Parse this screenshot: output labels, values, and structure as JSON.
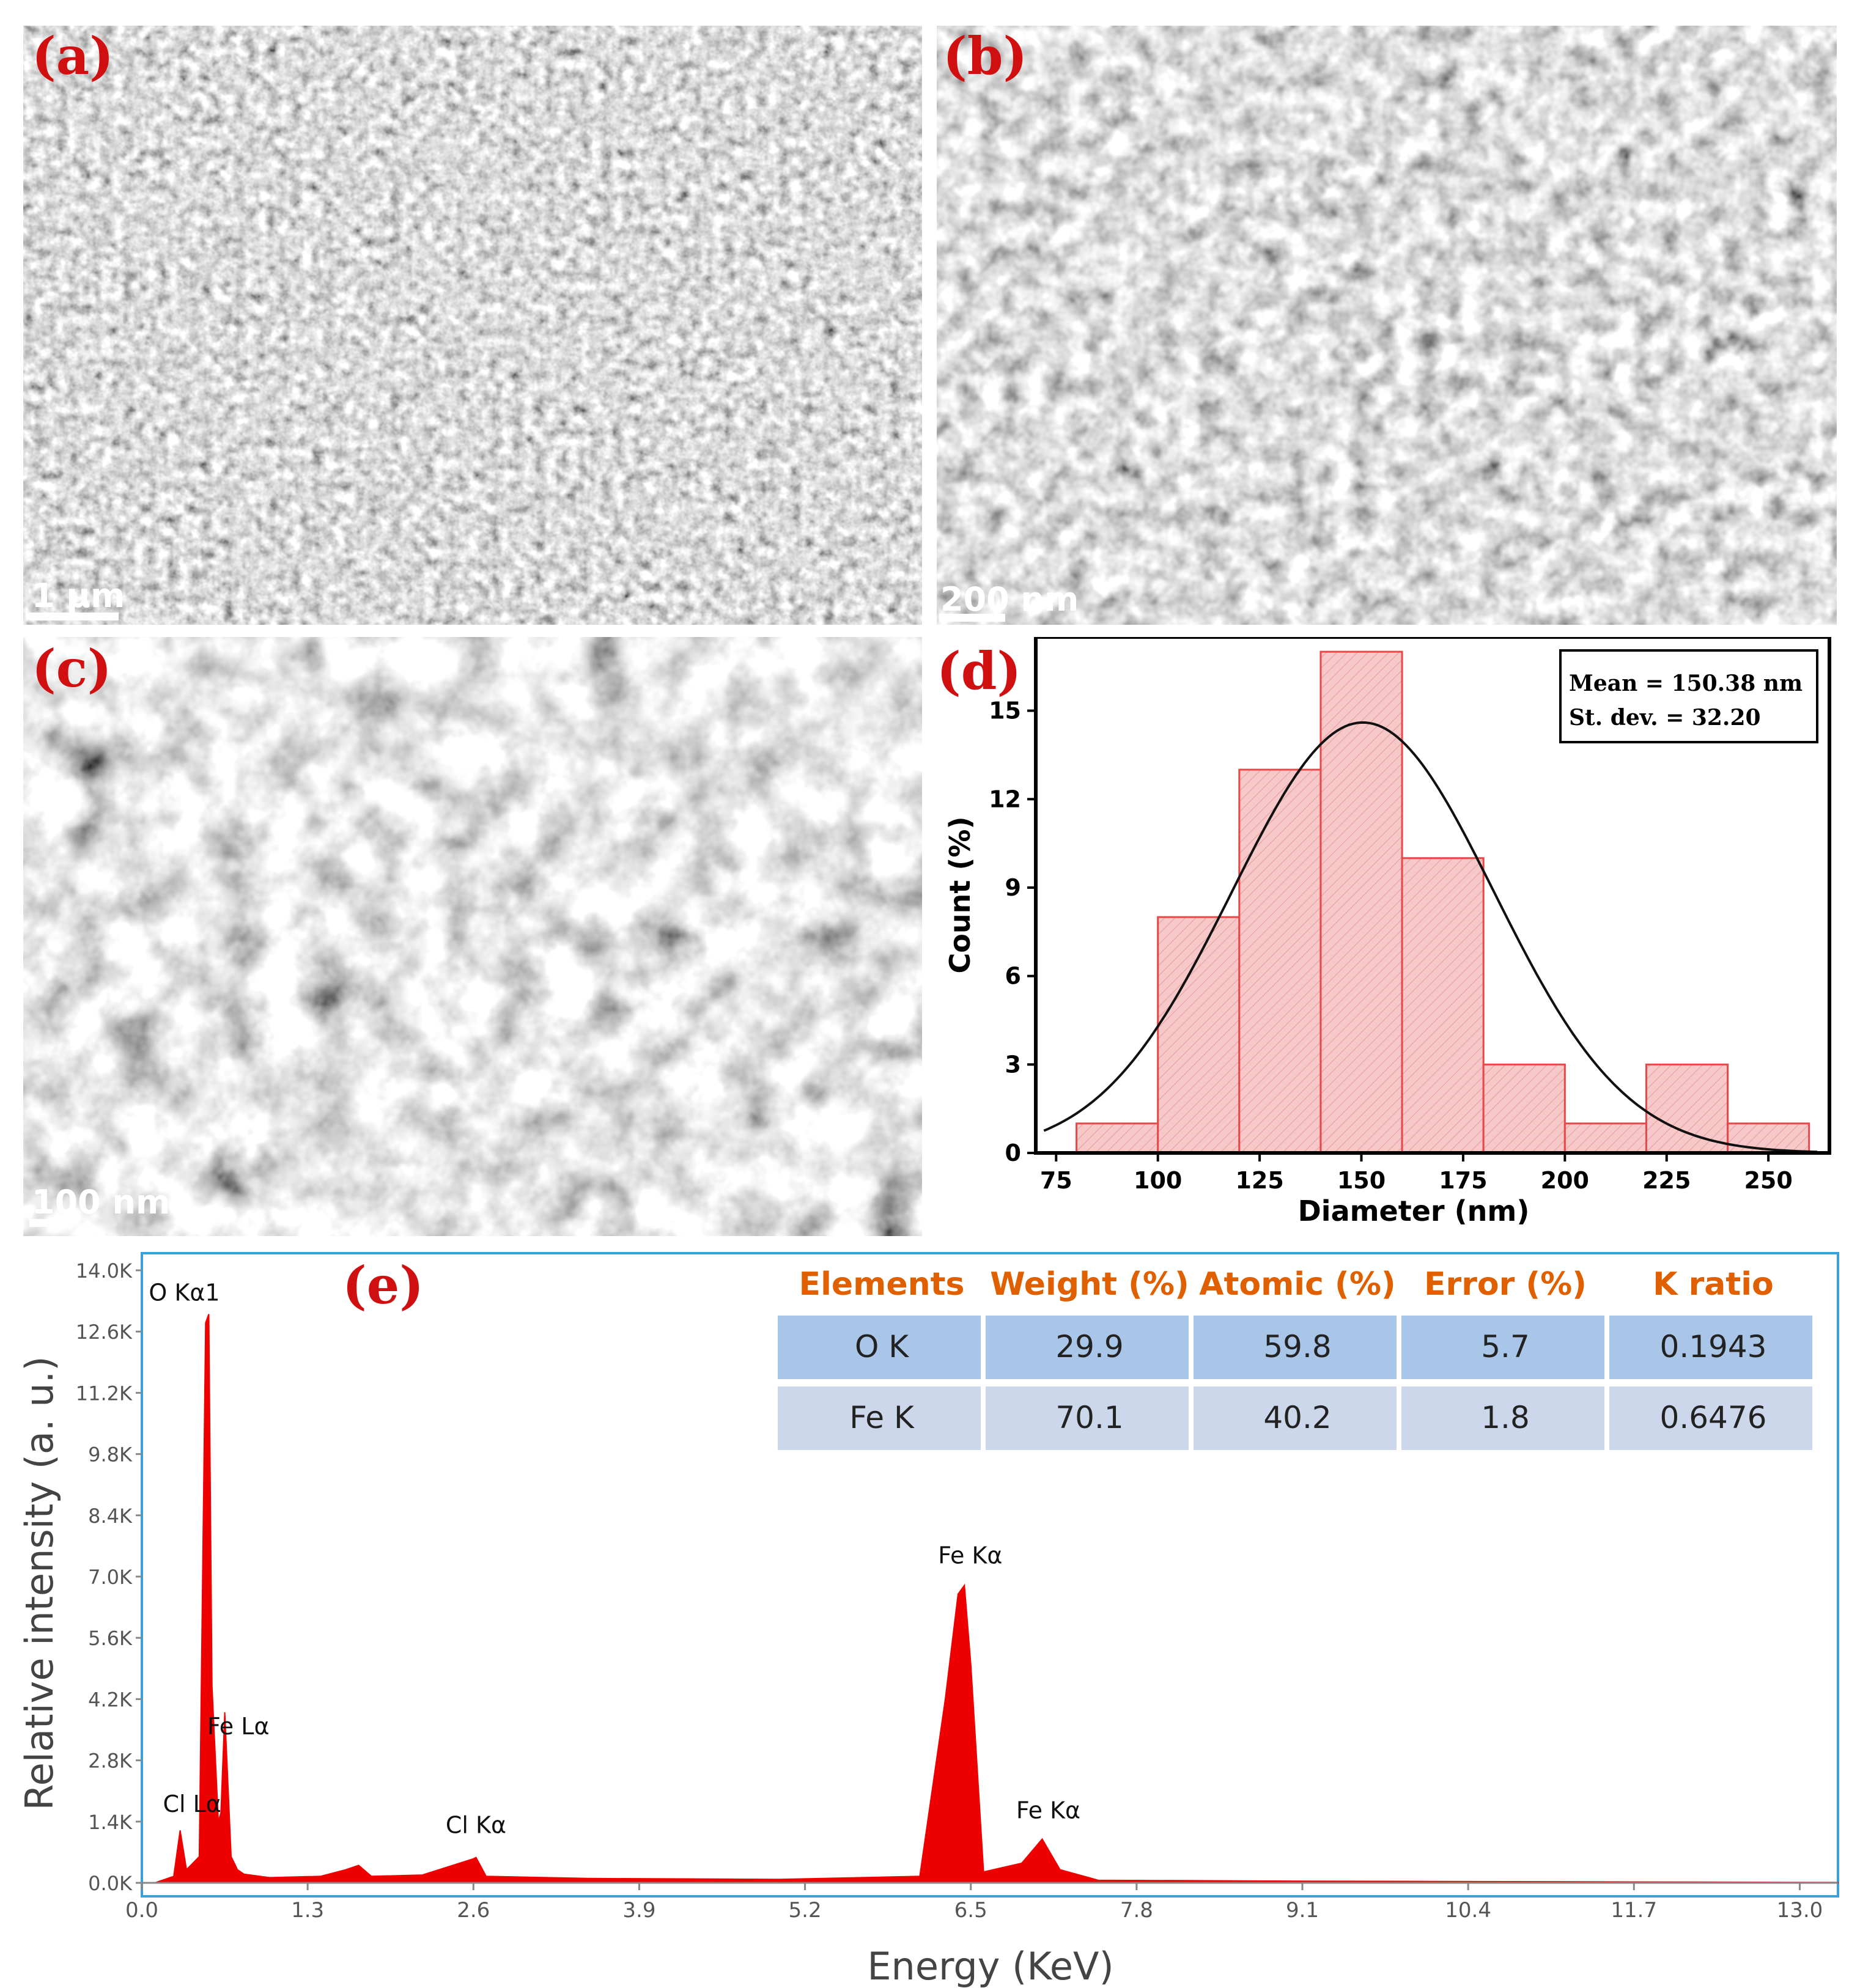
{
  "panels": {
    "a": {
      "label": "(a)",
      "scale": "1 μm"
    },
    "b": {
      "label": "(b)",
      "scale": "200 nm"
    },
    "c": {
      "label": "(c)",
      "scale": "100 nm"
    },
    "d": {
      "label": "(d)"
    },
    "e": {
      "label": "(e)"
    }
  },
  "histogram": {
    "stats": [
      "Mean = 150.38 nm",
      "St. dev. = 32.20"
    ],
    "xlabel": "Diameter (nm)",
    "ylabel": "Count (%)",
    "x_ticks": [
      "75",
      "100",
      "125",
      "150",
      "175",
      "200",
      "225",
      "250"
    ],
    "y_ticks": [
      "0",
      "3",
      "6",
      "9",
      "12",
      "15"
    ]
  },
  "eds": {
    "table": {
      "headers": [
        "Elements",
        "Weight (%)",
        "Atomic (%)",
        "Error (%)",
        "K ratio"
      ],
      "rows": [
        [
          "O K",
          "29.9",
          "59.8",
          "5.7",
          "0.1943"
        ],
        [
          "Fe K",
          "70.1",
          "40.2",
          "1.8",
          "0.6476"
        ]
      ]
    },
    "xlabel": "Energy (KeV)",
    "ylabel": "Relative intensity (a. u.)",
    "x_ticks": [
      "0.0",
      "1.3",
      "2.6",
      "3.9",
      "5.2",
      "6.5",
      "7.8",
      "9.1",
      "10.4",
      "11.7",
      "13.0"
    ],
    "y_ticks": [
      "0.0K",
      "1.4K",
      "2.8K",
      "4.2K",
      "5.6K",
      "7.0K",
      "8.4K",
      "9.8K",
      "11.2K",
      "12.6K",
      "14.0K"
    ],
    "peaks": [
      "O  Kα1",
      "Fe Lα",
      "Cl Lα",
      "Cl Kα",
      "Fe Kα",
      "Fe Kα"
    ]
  },
  "colors": {
    "accent": "#e06000",
    "panel_label": "#d01010",
    "spectrum": "#ee0000",
    "table_row_1": "#a9c5e8",
    "table_row_2": "#cdd7ec",
    "hist_fill": "#f6c8c8",
    "hist_edge": "#e84848",
    "frame": "#3aa0d8"
  },
  "chart_data": [
    {
      "type": "bar",
      "title": "",
      "xlabel": "Diameter (nm)",
      "ylabel": "Count (%)",
      "bin_edges": [
        80,
        100,
        120,
        140,
        160,
        180,
        200,
        220,
        240,
        260
      ],
      "values": [
        1,
        8,
        13,
        17,
        10,
        3,
        1,
        3,
        1
      ],
      "xlim": [
        70,
        265
      ],
      "ylim": [
        0,
        17.5
      ],
      "fit": {
        "type": "normal",
        "mean": 150.38,
        "sd": 32.2
      },
      "annotations": [
        "Mean = 150.38 nm",
        "St. dev. = 32.20"
      ]
    },
    {
      "type": "line",
      "title": "",
      "xlabel": "Energy (KeV)",
      "ylabel": "Relative intensity (a. u.)",
      "xlim": [
        0,
        13.3
      ],
      "ylim": [
        0,
        14000
      ],
      "series": [
        {
          "x": [
            0.1,
            0.25,
            0.3,
            0.35,
            0.45,
            0.5,
            0.525,
            0.55,
            0.6,
            0.62,
            0.65,
            0.7,
            0.75,
            0.8,
            1.0,
            1.4,
            1.6,
            1.7,
            1.8,
            2.2,
            2.6,
            2.62,
            2.7,
            3.5,
            5.0,
            6.1,
            6.3,
            6.4,
            6.45,
            6.5,
            6.6,
            6.9,
            7.06,
            7.2,
            7.5,
            9.0,
            13.3
          ],
          "y": [
            0,
            150,
            1200,
            300,
            600,
            12800,
            13000,
            4500,
            1400,
            1600,
            3900,
            600,
            300,
            200,
            120,
            150,
            300,
            400,
            150,
            180,
            550,
            580,
            150,
            100,
            80,
            150,
            4200,
            6600,
            6800,
            5000,
            250,
            450,
            1000,
            300,
            60,
            40,
            10
          ]
        }
      ],
      "peak_labels": [
        {
          "label": "O  Kα1",
          "x": 0.525,
          "y": 13000
        },
        {
          "label": "Fe Lα",
          "x": 0.705,
          "y": 3900
        },
        {
          "label": "Cl Lα",
          "x": 0.25,
          "y": 1200
        },
        {
          "label": "Cl Kα",
          "x": 2.62,
          "y": 580
        },
        {
          "label": "Fe Kα",
          "x": 6.4,
          "y": 6800
        },
        {
          "label": "Fe Kα",
          "x": 7.06,
          "y": 1000
        }
      ],
      "table": {
        "headers": [
          "Elements",
          "Weight (%)",
          "Atomic (%)",
          "Error (%)",
          "K ratio"
        ],
        "rows": [
          [
            "O K",
            29.9,
            59.8,
            5.7,
            0.1943
          ],
          [
            "Fe K",
            70.1,
            40.2,
            1.8,
            0.6476
          ]
        ]
      }
    }
  ]
}
